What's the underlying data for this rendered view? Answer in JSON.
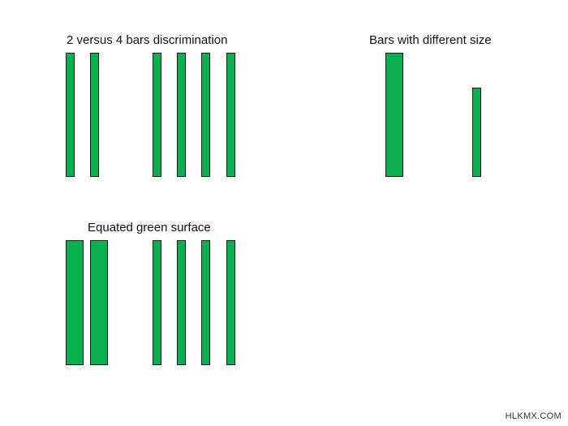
{
  "colors": {
    "bar_fill": "#0aaf50",
    "bar_stroke": "#1a1a1a",
    "background": "#ffffff"
  },
  "panels": {
    "two_vs_four": {
      "title": "2 versus 4 bars discrimination",
      "left_group_count": 2,
      "right_group_count": 4
    },
    "different_size": {
      "title": "Bars with different size",
      "relative_sizes": [
        {
          "name": "large-bar",
          "relative_width": 2,
          "relative_height": 1.0
        },
        {
          "name": "small-bar",
          "relative_width": 1,
          "relative_height": 0.72
        }
      ]
    },
    "equated_surface": {
      "title": "Equated green surface",
      "left_group_count": 2,
      "right_group_count": 4
    }
  },
  "watermark": "HLKMX.COM"
}
